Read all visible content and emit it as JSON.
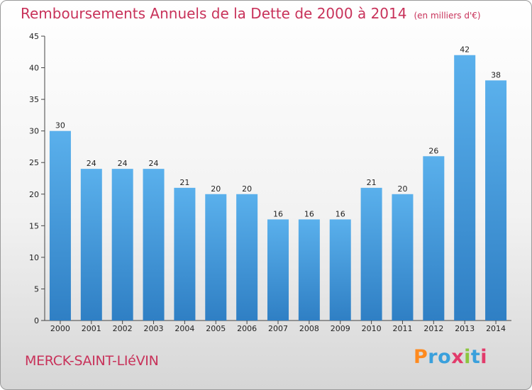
{
  "chart_data": {
    "type": "bar",
    "title": "Remboursements Annuels de la Dette de 2000 à 2014",
    "subtitle": "(en milliers d'€)",
    "categories": [
      "2000",
      "2001",
      "2002",
      "2003",
      "2004",
      "2005",
      "2006",
      "2007",
      "2008",
      "2009",
      "2010",
      "2011",
      "2012",
      "2013",
      "2014"
    ],
    "values": [
      30,
      24,
      24,
      24,
      21,
      20,
      20,
      16,
      16,
      16,
      21,
      20,
      26,
      42,
      38
    ],
    "ylim": [
      0,
      45
    ],
    "yticks": [
      0,
      5,
      10,
      15,
      20,
      25,
      30,
      35,
      40,
      45
    ],
    "grid": false,
    "bar_color": "#4a9fe0"
  },
  "footer": {
    "commune": "MERCK-SAINT-LIéVIN",
    "logo_text": "Proxiti"
  },
  "colors": {
    "title": "#c8325a",
    "logo": [
      "#ff8a1e",
      "#3aa0dc",
      "#3aa0dc",
      "#e23b6b",
      "#8cc63f",
      "#3aa0dc",
      "#e23b6b"
    ]
  }
}
